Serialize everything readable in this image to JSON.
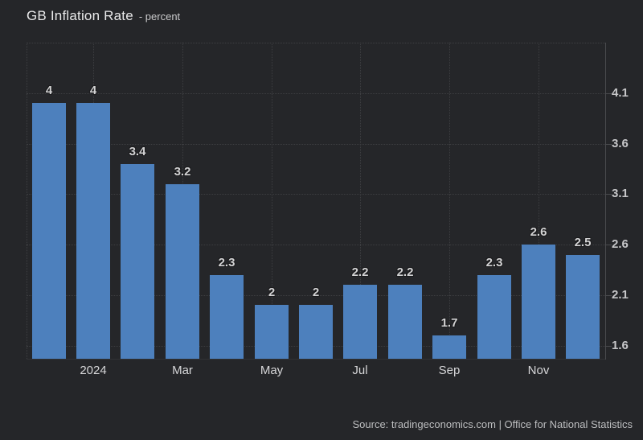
{
  "page": {
    "background": "#252629"
  },
  "header": {
    "title": "GB Inflation Rate",
    "subtitle": "- percent"
  },
  "chart_data": {
    "type": "bar",
    "title": "GB Inflation Rate",
    "ylabel": "percent",
    "values": [
      4,
      4,
      3.4,
      3.2,
      2.3,
      2,
      2,
      2.2,
      2.2,
      1.7,
      2.3,
      2.6,
      2.5
    ],
    "bar_labels": [
      "4",
      "4",
      "3.4",
      "3.2",
      "2.3",
      "2",
      "2",
      "2.2",
      "2.2",
      "1.7",
      "2.3",
      "2.6",
      "2.5"
    ],
    "x_ticks": [
      {
        "bar_index": 1,
        "label": "2024"
      },
      {
        "bar_index": 3,
        "label": "Mar"
      },
      {
        "bar_index": 5,
        "label": "May"
      },
      {
        "bar_index": 7,
        "label": "Jul"
      },
      {
        "bar_index": 9,
        "label": "Sep"
      },
      {
        "bar_index": 11,
        "label": "Nov"
      }
    ],
    "y_ticks": [
      4.1,
      3.6,
      3.1,
      2.6,
      2.1,
      1.6
    ],
    "ylim": [
      1.47,
      4.6
    ],
    "grid": "dotted",
    "legend": "none",
    "bar_color": "#4d80bd"
  },
  "footer": {
    "source": "Source: tradingeconomics.com | Office for National Statistics"
  }
}
